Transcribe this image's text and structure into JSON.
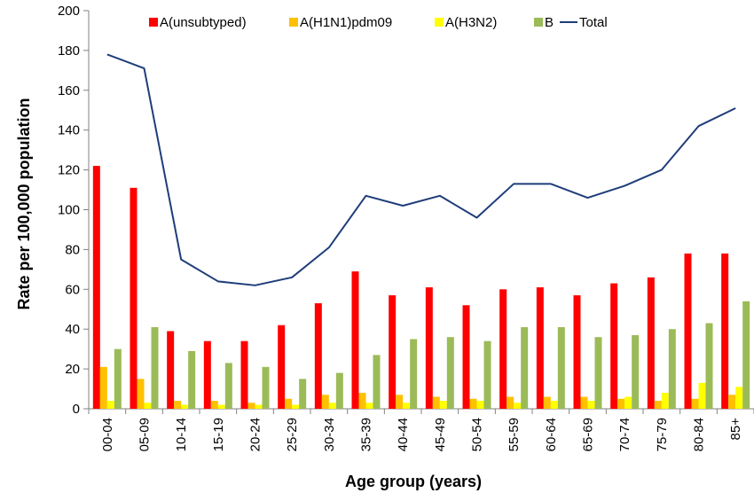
{
  "chart_data": {
    "type": "bar",
    "xlabel": "Age group (years)",
    "ylabel": "Rate per 100,000 population",
    "ylim": [
      0,
      200
    ],
    "yticks": [
      0,
      20,
      40,
      60,
      80,
      100,
      120,
      140,
      160,
      180,
      200
    ],
    "grid": false,
    "legend_position": "top",
    "categories": [
      "00-04",
      "05-09",
      "10-14",
      "15-19",
      "20-24",
      "25-29",
      "30-34",
      "35-39",
      "40-44",
      "45-49",
      "50-54",
      "55-59",
      "60-64",
      "65-69",
      "70-74",
      "75-79",
      "80-84",
      "85+"
    ],
    "series": [
      {
        "name": "A(unsubtyped)",
        "kind": "bar",
        "color": "#ff0000",
        "values": [
          122,
          111,
          39,
          34,
          34,
          42,
          53,
          69,
          57,
          61,
          52,
          60,
          61,
          57,
          63,
          66,
          78,
          78
        ]
      },
      {
        "name": "A(H1N1)pdm09",
        "kind": "bar",
        "color": "#ffc000",
        "values": [
          21,
          15,
          4,
          4,
          3,
          5,
          7,
          8,
          7,
          6,
          5,
          6,
          6,
          6,
          5,
          4,
          5,
          7
        ]
      },
      {
        "name": "A(H3N2)",
        "kind": "bar",
        "color": "#ffff00",
        "values": [
          4,
          3,
          2,
          2,
          2,
          2,
          3,
          3,
          3,
          4,
          4,
          3,
          4,
          4,
          6,
          8,
          13,
          11
        ]
      },
      {
        "name": "B",
        "kind": "bar",
        "color": "#9bbb59",
        "values": [
          30,
          41,
          29,
          23,
          21,
          15,
          18,
          27,
          35,
          36,
          34,
          41,
          41,
          36,
          37,
          40,
          43,
          54
        ]
      },
      {
        "name": "Total",
        "kind": "line",
        "color": "#1f3d7a",
        "values": [
          178,
          171,
          75,
          64,
          62,
          66,
          81,
          107,
          102,
          107,
          96,
          113,
          113,
          106,
          112,
          120,
          142,
          151
        ]
      }
    ]
  }
}
